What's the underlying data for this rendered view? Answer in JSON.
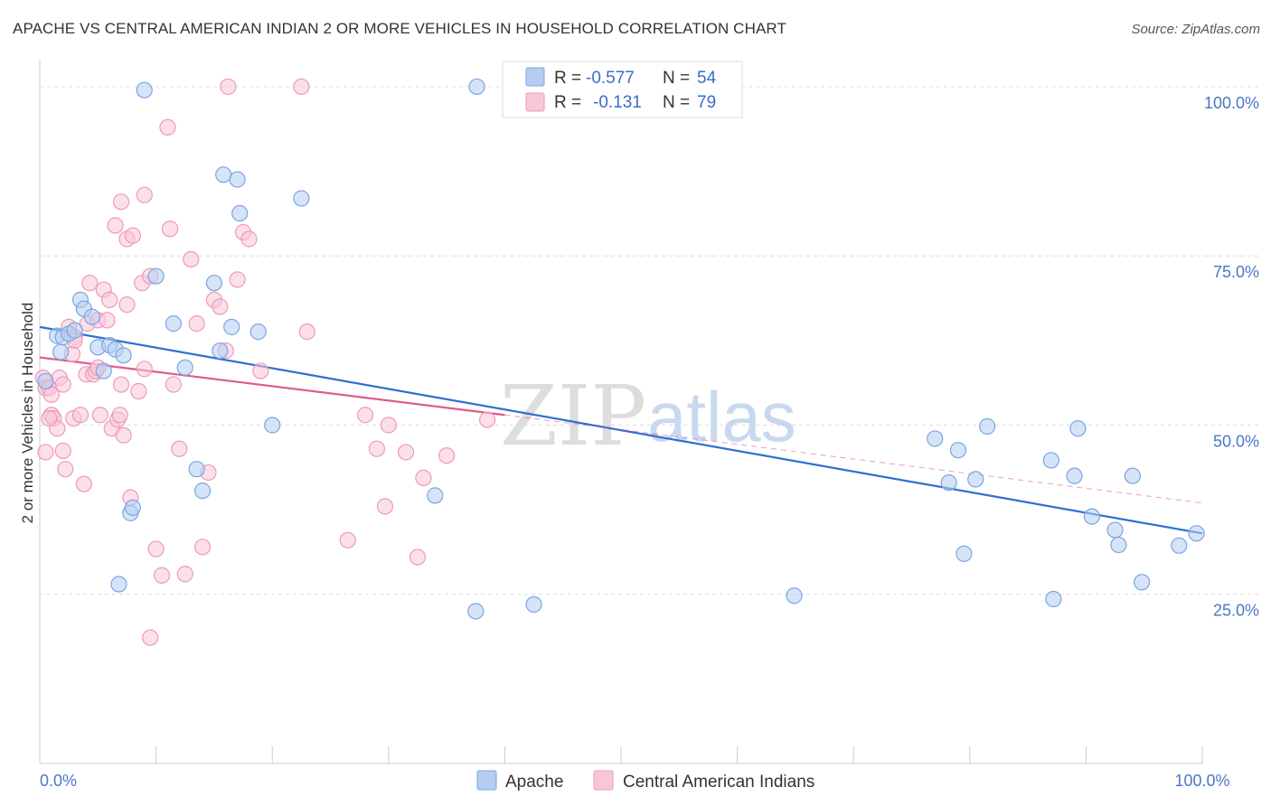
{
  "title": "APACHE VS CENTRAL AMERICAN INDIAN 2 OR MORE VEHICLES IN HOUSEHOLD CORRELATION CHART",
  "source": "Source: ZipAtlas.com",
  "watermark": {
    "zip": "ZIP",
    "atlas": "atlas"
  },
  "chart_data": {
    "type": "scatter",
    "ylabel": "2 or more Vehicles in Household",
    "xlim": [
      0,
      100
    ],
    "ylim": [
      0,
      104
    ],
    "x_tick_labels": [
      {
        "v": 0,
        "label": "0.0%"
      },
      {
        "v": 100,
        "label": "100.0%"
      }
    ],
    "y_tick_labels": [
      {
        "v": 25,
        "label": "25.0%"
      },
      {
        "v": 50,
        "label": "50.0%"
      },
      {
        "v": 75,
        "label": "75.0%"
      },
      {
        "v": 100,
        "label": "100.0%"
      }
    ],
    "grid": "horizontal dashed",
    "legend": {
      "placement": "top-center",
      "rows": [
        {
          "r_label": "R =",
          "r_value": "-0.577",
          "n_label": "N =",
          "n_value": "54"
        },
        {
          "r_label": "R =",
          "r_value": "-0.131",
          "n_label": "N =",
          "n_value": "79"
        }
      ]
    },
    "series": [
      {
        "name": "Apache",
        "color": "#7aa5e3",
        "fill": "#b5cdf0",
        "line_color": "#2f6fd0",
        "trend": {
          "x0": 0,
          "y0": 64.5,
          "x1": 100,
          "y1": 34.0,
          "dashed_ext": false
        },
        "points": [
          [
            0.5,
            56.5
          ],
          [
            1.5,
            63.2
          ],
          [
            1.8,
            60.8
          ],
          [
            2.0,
            63.0
          ],
          [
            2.5,
            63.5
          ],
          [
            3.0,
            64.0
          ],
          [
            3.5,
            68.5
          ],
          [
            3.8,
            67.2
          ],
          [
            4.5,
            66.0
          ],
          [
            5.0,
            61.5
          ],
          [
            5.5,
            58.0
          ],
          [
            6.0,
            61.8
          ],
          [
            6.5,
            61.2
          ],
          [
            7.2,
            60.3
          ],
          [
            7.8,
            37.0
          ],
          [
            8.0,
            37.8
          ],
          [
            6.8,
            26.5
          ],
          [
            9.0,
            99.5
          ],
          [
            10.0,
            72.0
          ],
          [
            11.5,
            65.0
          ],
          [
            12.5,
            58.5
          ],
          [
            13.5,
            43.5
          ],
          [
            14.0,
            40.3
          ],
          [
            15.0,
            71.0
          ],
          [
            15.5,
            61.0
          ],
          [
            15.8,
            87.0
          ],
          [
            16.5,
            64.5
          ],
          [
            17.0,
            86.3
          ],
          [
            17.2,
            81.3
          ],
          [
            18.8,
            63.8
          ],
          [
            20.0,
            50.0
          ],
          [
            22.5,
            83.5
          ],
          [
            34.0,
            39.6
          ],
          [
            37.5,
            22.5
          ],
          [
            37.6,
            100.0
          ],
          [
            42.5,
            23.5
          ],
          [
            64.9,
            24.8
          ],
          [
            77.0,
            48.0
          ],
          [
            78.2,
            41.5
          ],
          [
            79.0,
            46.3
          ],
          [
            79.5,
            31.0
          ],
          [
            80.5,
            42.0
          ],
          [
            81.5,
            49.8
          ],
          [
            87.0,
            44.8
          ],
          [
            87.2,
            24.3
          ],
          [
            89.0,
            42.5
          ],
          [
            89.3,
            49.5
          ],
          [
            90.5,
            36.5
          ],
          [
            92.5,
            34.5
          ],
          [
            92.8,
            32.3
          ],
          [
            94.0,
            42.5
          ],
          [
            94.8,
            26.8
          ],
          [
            98.0,
            32.2
          ],
          [
            99.5,
            34.0
          ]
        ]
      },
      {
        "name": "Central American Indians",
        "color": "#ef99b8",
        "fill": "#f7c7d8",
        "line_color": "#e05a8c",
        "trend": {
          "x0": 0,
          "y0": 60.0,
          "x1": 40.0,
          "y1": 51.5,
          "dashed_ext": true,
          "x2": 100,
          "y2": 38.5
        },
        "points": [
          [
            0.3,
            57.0
          ],
          [
            0.5,
            55.5
          ],
          [
            0.5,
            46.0
          ],
          [
            0.8,
            55.5
          ],
          [
            1.0,
            51.5
          ],
          [
            1.2,
            51.0
          ],
          [
            1.5,
            49.5
          ],
          [
            1.7,
            57.0
          ],
          [
            2.0,
            56.0
          ],
          [
            2.0,
            46.2
          ],
          [
            2.2,
            43.5
          ],
          [
            2.5,
            64.5
          ],
          [
            2.8,
            60.5
          ],
          [
            2.9,
            51.0
          ],
          [
            3.0,
            63.0
          ],
          [
            3.0,
            62.5
          ],
          [
            3.5,
            51.5
          ],
          [
            3.8,
            41.3
          ],
          [
            4.0,
            57.5
          ],
          [
            4.1,
            65.0
          ],
          [
            4.3,
            71.0
          ],
          [
            4.6,
            57.5
          ],
          [
            4.8,
            58.0
          ],
          [
            5.0,
            65.5
          ],
          [
            5.2,
            51.5
          ],
          [
            5.5,
            70.0
          ],
          [
            5.8,
            65.5
          ],
          [
            6.0,
            68.5
          ],
          [
            6.2,
            49.5
          ],
          [
            6.5,
            79.5
          ],
          [
            6.7,
            50.8
          ],
          [
            6.9,
            51.5
          ],
          [
            7.0,
            83.0
          ],
          [
            7.2,
            48.5
          ],
          [
            7.5,
            67.8
          ],
          [
            7.5,
            77.5
          ],
          [
            7.8,
            39.3
          ],
          [
            8.0,
            78.0
          ],
          [
            8.5,
            55.0
          ],
          [
            8.8,
            71.0
          ],
          [
            9.0,
            84.0
          ],
          [
            9.0,
            58.3
          ],
          [
            9.5,
            72.0
          ],
          [
            9.5,
            18.6
          ],
          [
            10.0,
            31.7
          ],
          [
            10.5,
            27.8
          ],
          [
            11.0,
            94.0
          ],
          [
            11.2,
            79.0
          ],
          [
            11.5,
            56.0
          ],
          [
            12.0,
            46.5
          ],
          [
            12.5,
            28.0
          ],
          [
            13.0,
            74.5
          ],
          [
            13.5,
            65.0
          ],
          [
            14.0,
            32.0
          ],
          [
            14.5,
            43.0
          ],
          [
            15.0,
            68.5
          ],
          [
            15.5,
            67.5
          ],
          [
            16.0,
            61.0
          ],
          [
            16.2,
            100.0
          ],
          [
            17.0,
            71.5
          ],
          [
            17.5,
            78.5
          ],
          [
            18.0,
            77.5
          ],
          [
            19.0,
            58.0
          ],
          [
            22.5,
            100.0
          ],
          [
            23.0,
            63.8
          ],
          [
            26.5,
            33.0
          ],
          [
            28.0,
            51.5
          ],
          [
            29.0,
            46.5
          ],
          [
            30.0,
            50.0
          ],
          [
            29.7,
            38.0
          ],
          [
            31.5,
            46.0
          ],
          [
            32.5,
            30.5
          ],
          [
            33.0,
            42.2
          ],
          [
            35.0,
            45.5
          ],
          [
            38.5,
            50.8
          ],
          [
            1.0,
            54.5
          ],
          [
            0.8,
            51.0
          ],
          [
            7.0,
            56.0
          ],
          [
            5.0,
            58.5
          ]
        ]
      }
    ]
  }
}
